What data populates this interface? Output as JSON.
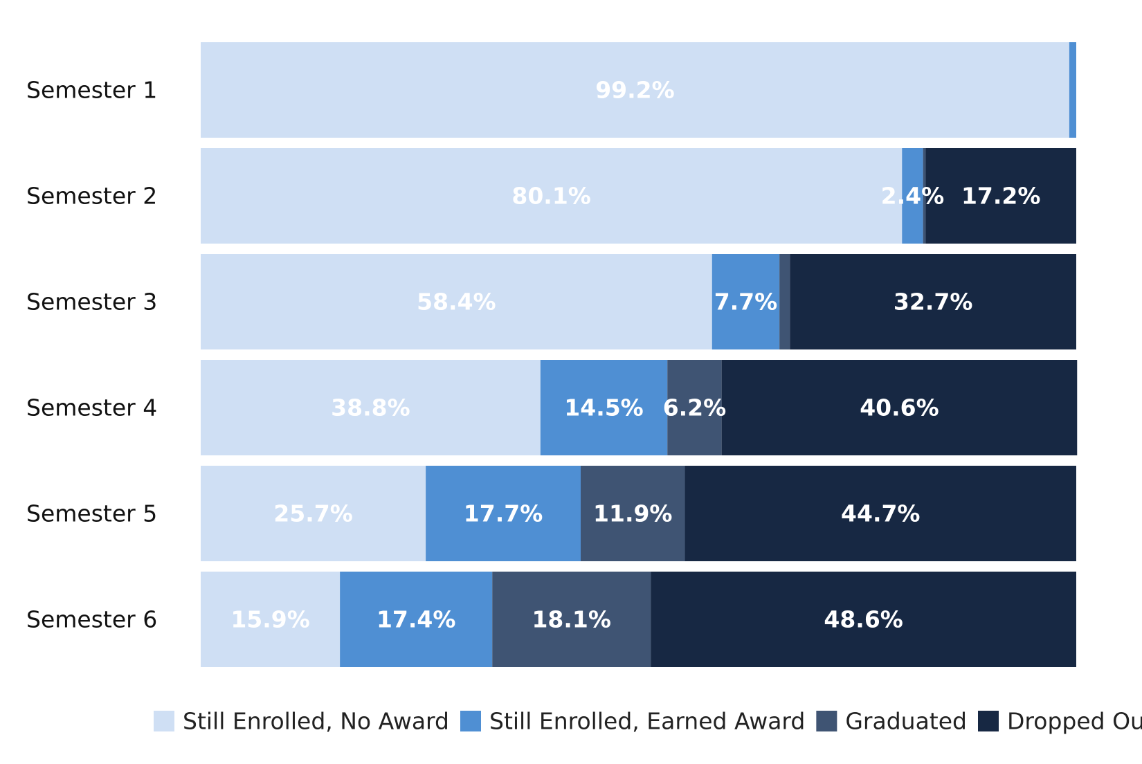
{
  "chart_data": {
    "type": "bar",
    "orientation": "horizontal",
    "stacked": true,
    "title": "",
    "xlabel": "",
    "ylabel": "",
    "xlim": [
      0,
      100
    ],
    "grid": false,
    "legend_position": "bottom",
    "categories": [
      "Semester 1",
      "Semester 2",
      "Semester 3",
      "Semester 4",
      "Semester 5",
      "Semester 6"
    ],
    "series": [
      {
        "name": "Still Enrolled, No Award",
        "color": "#cfdff4",
        "values": [
          99.2,
          80.1,
          58.4,
          38.8,
          25.7,
          15.9
        ],
        "labels": [
          "99.2%",
          "80.1%",
          "58.4%",
          "38.8%",
          "25.7%",
          "15.9%"
        ]
      },
      {
        "name": "Still Enrolled, Earned Award",
        "color": "#4f8fd3",
        "values": [
          0.8,
          2.4,
          7.7,
          14.5,
          17.7,
          17.4
        ],
        "labels": [
          "",
          "2.4%",
          "7.7%",
          "14.5%",
          "17.7%",
          "17.4%"
        ]
      },
      {
        "name": "Graduated",
        "color": "#3f5473",
        "values": [
          0,
          0.3,
          1.2,
          6.2,
          11.9,
          18.1
        ],
        "labels": [
          "",
          "",
          "",
          "6.2%",
          "11.9%",
          "18.1%"
        ]
      },
      {
        "name": "Dropped Out",
        "color": "#172843",
        "values": [
          0,
          17.2,
          32.7,
          40.6,
          44.7,
          48.6
        ],
        "labels": [
          "",
          "17.2%",
          "32.7%",
          "40.6%",
          "44.7%",
          "48.6%"
        ]
      }
    ]
  }
}
